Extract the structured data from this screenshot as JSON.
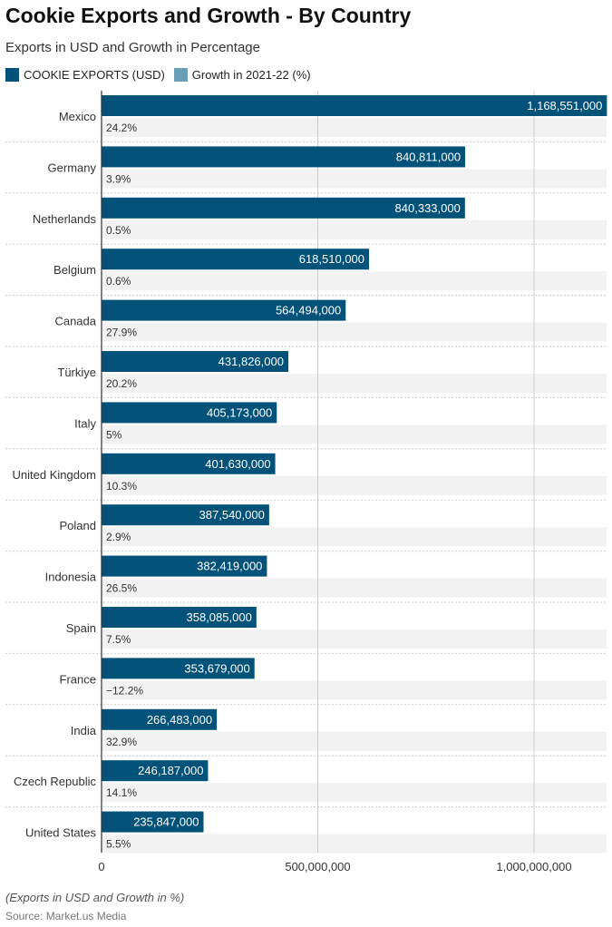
{
  "title": "Cookie Exports and Growth - By Country",
  "subtitle": "Exports in USD and Growth in Percentage",
  "footnote": "(Exports in USD and Growth in %)",
  "source": "Source: Market.us Media",
  "chart_data": {
    "type": "bar",
    "orientation": "horizontal",
    "categories": [
      "Mexico",
      "Germany",
      "Netherlands",
      "Belgium",
      "Canada",
      "Türkiye",
      "Italy",
      "United Kingdom",
      "Poland",
      "Indonesia",
      "Spain",
      "France",
      "India",
      "Czech Republic",
      "United States"
    ],
    "series": [
      {
        "name": "COOKIE EXPORTS (USD)",
        "color": "#03527a",
        "values": [
          1168551000,
          840811000,
          840333000,
          618510000,
          564494000,
          431826000,
          405173000,
          401630000,
          387540000,
          382419000,
          358085000,
          353679000,
          266483000,
          246187000,
          235847000
        ],
        "labels": [
          "1,168,551,000",
          "840,811,000",
          "840,333,000",
          "618,510,000",
          "564,494,000",
          "431,826,000",
          "405,173,000",
          "401,630,000",
          "387,540,000",
          "382,419,000",
          "358,085,000",
          "353,679,000",
          "266,483,000",
          "246,187,000",
          "235,847,000"
        ]
      },
      {
        "name": "Growth in 2021-22 (%)",
        "color": "#6a9db6",
        "values": [
          24.2,
          3.9,
          0.5,
          0.6,
          27.9,
          20.2,
          5,
          10.3,
          2.9,
          26.5,
          7.5,
          -12.2,
          32.9,
          14.1,
          5.5
        ],
        "labels": [
          "24.2%",
          "3.9%",
          "0.5%",
          "0.6%",
          "27.9%",
          "20.2%",
          "5%",
          "10.3%",
          "2.9%",
          "26.5%",
          "7.5%",
          "−12.2%",
          "32.9%",
          "14.1%",
          "5.5%"
        ]
      }
    ],
    "xlim": [
      0,
      1168551000
    ],
    "xticks": [
      0,
      500000000,
      1000000000
    ],
    "xtick_labels": [
      "0",
      "500,000,000",
      "1,000,000,000"
    ],
    "grid": true,
    "legend": "top-left"
  }
}
